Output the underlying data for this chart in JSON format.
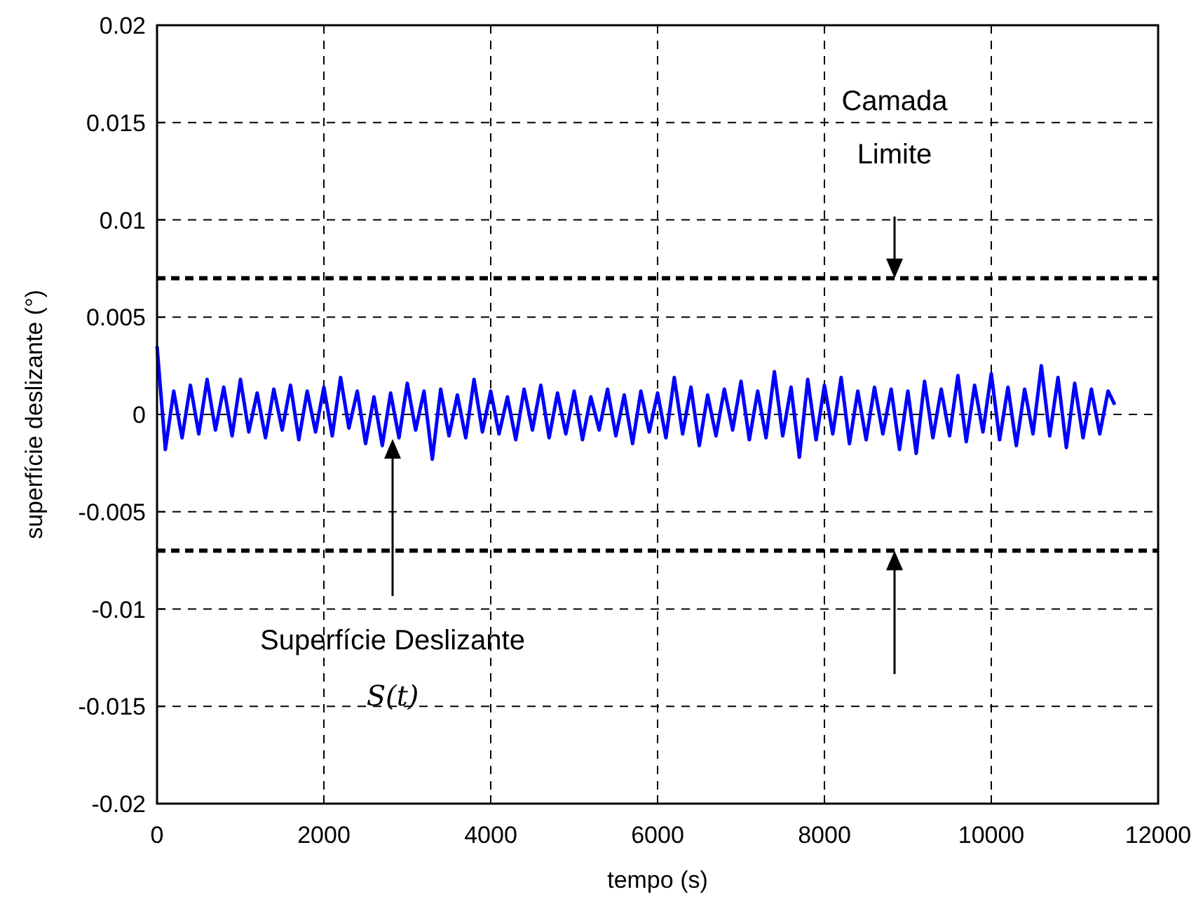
{
  "chart_data": {
    "type": "line",
    "xlabel": "tempo (s)",
    "ylabel": "superfície deslizante (°)",
    "xlim": [
      0,
      12000
    ],
    "xticks": [
      0,
      2000,
      4000,
      6000,
      8000,
      10000,
      12000
    ],
    "ylim": [
      -0.02,
      0.02
    ],
    "yticks": [
      -0.02,
      -0.015,
      -0.01,
      -0.005,
      0,
      0.005,
      0.01,
      0.015,
      0.02
    ],
    "grid": true,
    "line_style": "solid",
    "marker": "none",
    "x": [
      0,
      100,
      200,
      300,
      400,
      500,
      600,
      700,
      800,
      900,
      1000,
      1100,
      1200,
      1300,
      1400,
      1500,
      1600,
      1700,
      1800,
      1900,
      2000,
      2100,
      2200,
      2300,
      2400,
      2500,
      2600,
      2700,
      2800,
      2900,
      3000,
      3100,
      3200,
      3300,
      3400,
      3500,
      3600,
      3700,
      3800,
      3900,
      4000,
      4100,
      4200,
      4300,
      4400,
      4500,
      4600,
      4700,
      4800,
      4900,
      5000,
      5100,
      5200,
      5300,
      5400,
      5500,
      5600,
      5700,
      5800,
      5900,
      6000,
      6100,
      6200,
      6300,
      6400,
      6500,
      6600,
      6700,
      6800,
      6900,
      7000,
      7100,
      7200,
      7300,
      7400,
      7500,
      7600,
      7700,
      7800,
      7900,
      8000,
      8100,
      8200,
      8300,
      8400,
      8500,
      8600,
      8700,
      8800,
      8900,
      9000,
      9100,
      9200,
      9300,
      9400,
      9500,
      9600,
      9700,
      9800,
      9900,
      10000,
      10100,
      10200,
      10300,
      10400,
      10500,
      10600,
      10700,
      10800,
      10900,
      11000,
      11100,
      11200,
      11300,
      11400,
      11480
    ],
    "series": [
      {
        "color": "#0000ff",
        "values": [
          0.0035,
          -0.0018,
          0.0012,
          -0.0012,
          0.0015,
          -0.001,
          0.0018,
          -0.0008,
          0.0014,
          -0.0011,
          0.0018,
          -0.0009,
          0.0011,
          -0.0012,
          0.0013,
          -0.0008,
          0.0015,
          -0.0013,
          0.0012,
          -0.0009,
          0.0014,
          -0.0011,
          0.0019,
          -0.0007,
          0.0012,
          -0.0015,
          0.0009,
          -0.0016,
          0.0011,
          -0.0012,
          0.0016,
          -0.0008,
          0.0012,
          -0.0023,
          0.0013,
          -0.0011,
          0.001,
          -0.0012,
          0.0018,
          -0.0009,
          0.0012,
          -0.001,
          0.0009,
          -0.0013,
          0.0013,
          -0.0008,
          0.0015,
          -0.0012,
          0.0011,
          -0.001,
          0.0012,
          -0.0013,
          0.0009,
          -0.0008,
          0.0013,
          -0.0011,
          0.001,
          -0.0015,
          0.0012,
          -0.0009,
          0.0011,
          -0.0012,
          0.0019,
          -0.001,
          0.0014,
          -0.0016,
          0.001,
          -0.0011,
          0.0013,
          -0.0008,
          0.0017,
          -0.0013,
          0.0012,
          -0.0012,
          0.0022,
          -0.0011,
          0.0014,
          -0.0022,
          0.0018,
          -0.0013,
          0.0015,
          -0.001,
          0.0019,
          -0.0015,
          0.0012,
          -0.0013,
          0.0014,
          -0.001,
          0.0013,
          -0.0018,
          0.0012,
          -0.002,
          0.0017,
          -0.0012,
          0.0013,
          -0.0011,
          0.002,
          -0.0014,
          0.0015,
          -0.0009,
          0.0021,
          -0.0013,
          0.0014,
          -0.0016,
          0.0013,
          -0.001,
          0.0025,
          -0.0011,
          0.0019,
          -0.0017,
          0.0016,
          -0.0012,
          0.0013,
          -0.001,
          0.0012,
          0.0005
        ]
      }
    ],
    "ref_lines": [
      {
        "axis": "y",
        "value": 0.007,
        "color": "#000000",
        "line_style": "dashed"
      },
      {
        "axis": "y",
        "value": -0.007,
        "color": "#000000",
        "line_style": "dashed"
      }
    ],
    "annotations": [
      "Camada Limite",
      "Superfície Deslizante",
      "S(t)"
    ]
  }
}
